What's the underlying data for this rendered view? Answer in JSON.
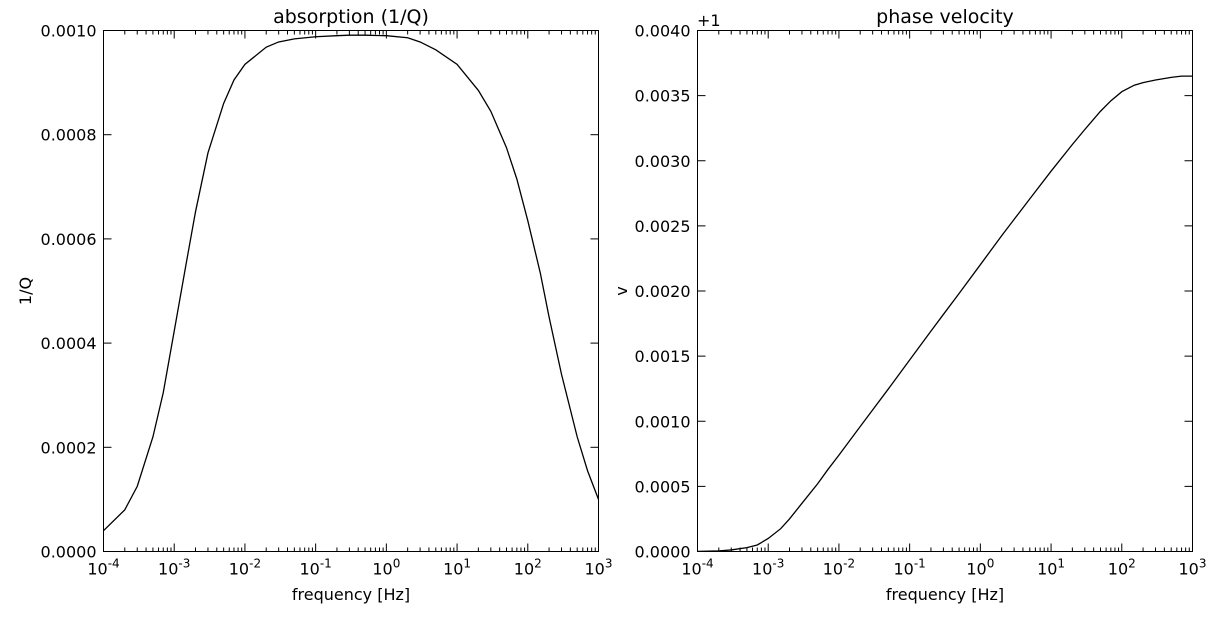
{
  "chart_data": [
    {
      "type": "line",
      "title": "absorption (1/Q)",
      "xlabel": "frequency [Hz]",
      "ylabel": "1/Q",
      "xscale": "log",
      "xlim": [
        0.0001,
        1000
      ],
      "ylim": [
        0.0,
        0.001
      ],
      "offset_text": "",
      "x_tick_labels": [
        {
          "base": "10",
          "exp": "-4",
          "value": 0.0001
        },
        {
          "base": "10",
          "exp": "-3",
          "value": 0.001
        },
        {
          "base": "10",
          "exp": "-2",
          "value": 0.01
        },
        {
          "base": "10",
          "exp": "-1",
          "value": 0.1
        },
        {
          "base": "10",
          "exp": "0",
          "value": 1
        },
        {
          "base": "10",
          "exp": "1",
          "value": 10
        },
        {
          "base": "10",
          "exp": "2",
          "value": 100
        },
        {
          "base": "10",
          "exp": "3",
          "value": 1000
        }
      ],
      "y_ticks": [
        {
          "label": "0.0000",
          "value": 0.0
        },
        {
          "label": "0.0002",
          "value": 0.0002
        },
        {
          "label": "0.0004",
          "value": 0.0004
        },
        {
          "label": "0.0006",
          "value": 0.0006
        },
        {
          "label": "0.0008",
          "value": 0.0008
        },
        {
          "label": "0.0010",
          "value": 0.001
        }
      ],
      "grid": false,
      "series": [
        {
          "color": "#000000",
          "x": [
            0.0001,
            0.0002,
            0.0003,
            0.0005,
            0.0007,
            0.001,
            0.0015,
            0.002,
            0.003,
            0.005,
            0.007,
            0.01,
            0.02,
            0.03,
            0.05,
            0.1,
            0.2,
            0.3,
            0.5,
            1,
            2,
            3,
            5,
            10,
            20,
            30,
            50,
            70,
            100,
            150,
            200,
            300,
            500,
            700,
            1000
          ],
          "y": [
            4e-05,
            8e-05,
            0.000125,
            0.00022,
            0.000305,
            0.000423,
            0.000558,
            0.000652,
            0.000765,
            0.00086,
            0.000905,
            0.000935,
            0.000968,
            0.000978,
            0.000984,
            0.000988,
            0.00099,
            0.000991,
            0.000991,
            0.00099,
            0.000986,
            0.000978,
            0.000963,
            0.000935,
            0.000885,
            0.000845,
            0.000775,
            0.000715,
            0.000635,
            0.000535,
            0.00045,
            0.00034,
            0.00022,
            0.000155,
            0.0001
          ]
        }
      ]
    },
    {
      "type": "line",
      "title": "phase velocity",
      "xlabel": "frequency [Hz]",
      "ylabel": "v",
      "xscale": "log",
      "xlim": [
        0.0001,
        1000
      ],
      "ylim": [
        0.0,
        0.004
      ],
      "offset_text": "+1",
      "x_tick_labels": [
        {
          "base": "10",
          "exp": "-4",
          "value": 0.0001
        },
        {
          "base": "10",
          "exp": "-3",
          "value": 0.001
        },
        {
          "base": "10",
          "exp": "-2",
          "value": 0.01
        },
        {
          "base": "10",
          "exp": "-1",
          "value": 0.1
        },
        {
          "base": "10",
          "exp": "0",
          "value": 1
        },
        {
          "base": "10",
          "exp": "1",
          "value": 10
        },
        {
          "base": "10",
          "exp": "2",
          "value": 100
        },
        {
          "base": "10",
          "exp": "3",
          "value": 1000
        }
      ],
      "y_ticks": [
        {
          "label": "0.0000",
          "value": 0.0
        },
        {
          "label": "0.0005",
          "value": 0.0005
        },
        {
          "label": "0.0010",
          "value": 0.001
        },
        {
          "label": "0.0015",
          "value": 0.0015
        },
        {
          "label": "0.0020",
          "value": 0.002
        },
        {
          "label": "0.0025",
          "value": 0.0025
        },
        {
          "label": "0.0030",
          "value": 0.003
        },
        {
          "label": "0.0035",
          "value": 0.0035
        },
        {
          "label": "0.0040",
          "value": 0.004
        }
      ],
      "grid": false,
      "series": [
        {
          "color": "#000000",
          "x": [
            0.0001,
            0.0002,
            0.0003,
            0.0005,
            0.0007,
            0.001,
            0.0015,
            0.002,
            0.003,
            0.005,
            0.007,
            0.01,
            0.02,
            0.03,
            0.05,
            0.1,
            0.2,
            0.3,
            0.5,
            1,
            2,
            3,
            5,
            10,
            20,
            30,
            50,
            70,
            100,
            150,
            200,
            300,
            500,
            700,
            1000
          ],
          "y": [
            1e-06,
            5e-06,
            1.2e-05,
            3e-05,
            5e-05,
            0.0001,
            0.000175,
            0.00025,
            0.00037,
            0.00052,
            0.00063,
            0.00074,
            0.00096,
            0.001087,
            0.001248,
            0.00147,
            0.001692,
            0.00182,
            0.001981,
            0.002202,
            0.002424,
            0.00255,
            0.002707,
            0.00292,
            0.003125,
            0.00324,
            0.00338,
            0.00346,
            0.00353,
            0.00358,
            0.0036,
            0.00362,
            0.00364,
            0.00365,
            0.00365
          ]
        }
      ]
    }
  ]
}
